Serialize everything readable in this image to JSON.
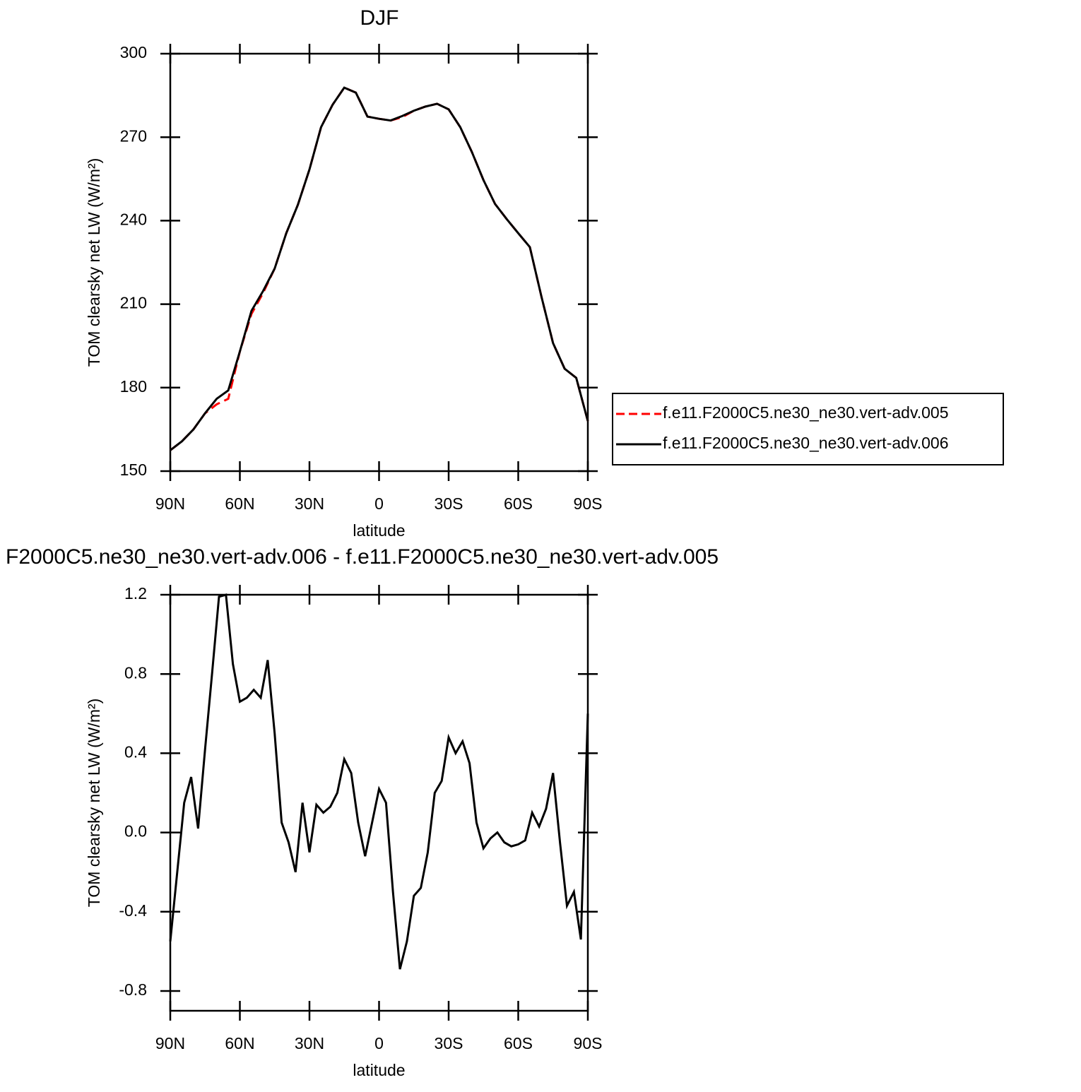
{
  "chart_data": [
    {
      "type": "line",
      "title": "DJF",
      "xlabel": "latitude",
      "ylabel": "TOM clearsky net LW (W/m²)",
      "xlim": [
        90,
        -90
      ],
      "xticks": [
        {
          "value": 90,
          "label": "90N"
        },
        {
          "value": 60,
          "label": "60N"
        },
        {
          "value": 30,
          "label": "30N"
        },
        0,
        {
          "value": -30,
          "label": "30S"
        },
        {
          "value": -60,
          "label": "60S"
        },
        {
          "value": -90,
          "label": "90S"
        }
      ],
      "ylim": [
        150,
        300
      ],
      "yticks": [
        150,
        180,
        210,
        240,
        270,
        300
      ],
      "legend": "right",
      "x": [
        90,
        85,
        80,
        75,
        70,
        65,
        60,
        55,
        50,
        45,
        40,
        35,
        30,
        25,
        20,
        15,
        10,
        5,
        0,
        -5,
        -10,
        -15,
        -20,
        -25,
        -30,
        -35,
        -40,
        -45,
        -50,
        -55,
        -60,
        -65,
        -70,
        -75,
        -80,
        -85,
        -90
      ],
      "series": [
        {
          "name": "f.e11.F2000C5.ne30_ne30.vert-adv.005",
          "color": "#ff0000",
          "dashed": true,
          "values": [
            157.5,
            160.7,
            165,
            170.8,
            174,
            176,
            193,
            206.5,
            214,
            222.8,
            235.5,
            245.7,
            258.4,
            273.6,
            281.7,
            287.8,
            286,
            277.4,
            276.6,
            276,
            277.2,
            279.5,
            281,
            282,
            280,
            273.6,
            264.7,
            254.6,
            246,
            240.6,
            235.5,
            230.5,
            212.7,
            196,
            186.8,
            183.5,
            168
          ]
        },
        {
          "name": "f.e11.F2000C5.ne30_ne30.vert-adv.006",
          "color": "#000000",
          "dashed": false,
          "values": [
            157.5,
            160.7,
            165,
            170.8,
            176,
            179,
            193,
            207.6,
            214.7,
            222.8,
            235.5,
            245.7,
            258.4,
            273.6,
            281.7,
            287.8,
            286,
            277.4,
            276.6,
            276,
            277.6,
            279.5,
            281,
            282,
            280,
            273.6,
            264.7,
            254.6,
            246,
            240.6,
            235.5,
            230.5,
            212.7,
            196,
            186.8,
            183.5,
            168
          ]
        }
      ]
    },
    {
      "type": "line",
      "title": "F2000C5.ne30_ne30.vert-adv.006 - f.e11.F2000C5.ne30_ne30.vert-adv.005",
      "xlabel": "latitude",
      "ylabel": "TOM clearsky net LW (W/m²)",
      "xlim": [
        90,
        -90
      ],
      "xticks": [
        {
          "value": 90,
          "label": "90N"
        },
        {
          "value": 60,
          "label": "60N"
        },
        {
          "value": 30,
          "label": "30N"
        },
        0,
        {
          "value": -30,
          "label": "30S"
        },
        {
          "value": -60,
          "label": "60S"
        },
        {
          "value": -90,
          "label": "90S"
        }
      ],
      "ylim": [
        -0.9,
        1.2
      ],
      "yticks": [
        -0.8,
        -0.4,
        {
          "value": 0,
          "label": "0.0"
        },
        0.4,
        0.8,
        1.2
      ],
      "x": [
        90,
        87,
        84,
        81,
        78,
        75,
        72,
        69,
        66,
        63,
        60,
        57,
        54,
        51,
        48,
        45,
        42,
        39,
        36,
        33,
        30,
        27,
        24,
        21,
        18,
        15,
        12,
        9,
        6,
        3,
        0,
        -3,
        -6,
        -9,
        -12,
        -15,
        -18,
        -21,
        -24,
        -27,
        -30,
        -33,
        -36,
        -39,
        -42,
        -45,
        -48,
        -51,
        -54,
        -57,
        -60,
        -63,
        -66,
        -69,
        -72,
        -75,
        -78,
        -81,
        -84,
        -87,
        -90
      ],
      "series": [
        {
          "name": null,
          "color": "#000000",
          "dashed": false,
          "values": [
            -0.55,
            -0.2,
            0.15,
            0.28,
            0.02,
            0.42,
            0.8,
            1.19,
            1.2,
            0.85,
            0.66,
            0.68,
            0.72,
            0.68,
            0.87,
            0.5,
            0.05,
            -0.05,
            -0.2,
            0.15,
            -0.1,
            0.14,
            0.1,
            0.13,
            0.2,
            0.37,
            0.3,
            0.05,
            -0.12,
            0.05,
            0.22,
            0.15,
            -0.3,
            -0.69,
            -0.55,
            -0.32,
            -0.28,
            -0.1,
            0.2,
            0.26,
            0.48,
            0.4,
            0.46,
            0.35,
            0.05,
            -0.08,
            -0.03,
            0,
            -0.05,
            -0.07,
            -0.06,
            -0.04,
            0.1,
            0.03,
            0.12,
            0.3,
            -0.05,
            -0.37,
            -0.3,
            -0.54,
            0.6
          ]
        }
      ]
    }
  ]
}
